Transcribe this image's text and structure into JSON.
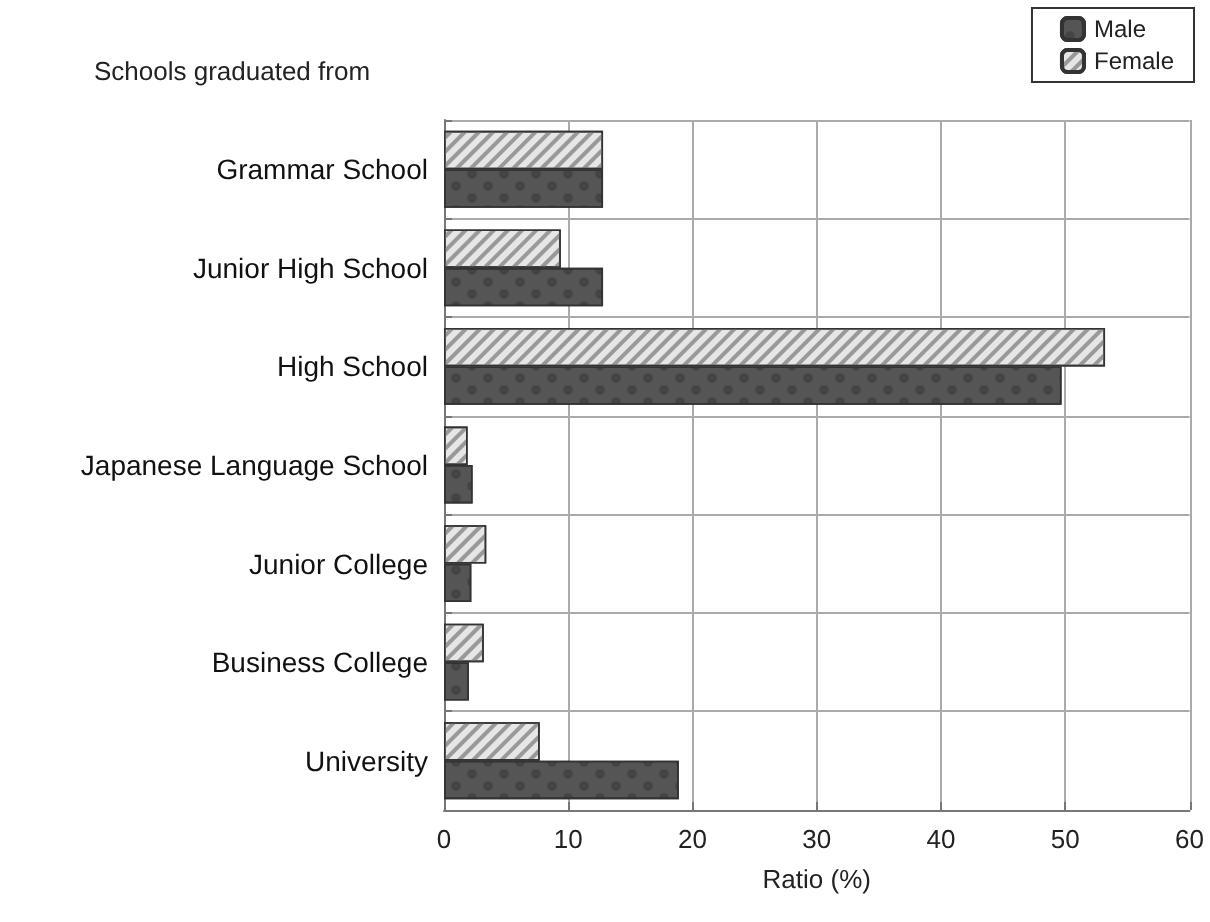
{
  "chart_data": {
    "type": "bar",
    "orientation": "horizontal",
    "title": "Schools graduated from",
    "xlabel": "Ratio (%)",
    "categories": [
      "Grammar School",
      "Junior High School",
      "High School",
      "Japanese Language School",
      "Junior College",
      "Business College",
      "University"
    ],
    "series": [
      {
        "name": "Male",
        "color": "#555555",
        "values": [
          12.8,
          12.8,
          49.7,
          2.3,
          2.2,
          2.0,
          18.9
        ]
      },
      {
        "name": "Female",
        "color": "#e6e6e6",
        "values": [
          12.8,
          9.4,
          53.2,
          1.9,
          3.4,
          3.2,
          7.7
        ]
      }
    ],
    "xlim": [
      0,
      60
    ],
    "xticks": [
      0,
      10,
      20,
      30,
      40,
      50,
      60
    ],
    "grid": true,
    "legend": "top right"
  }
}
